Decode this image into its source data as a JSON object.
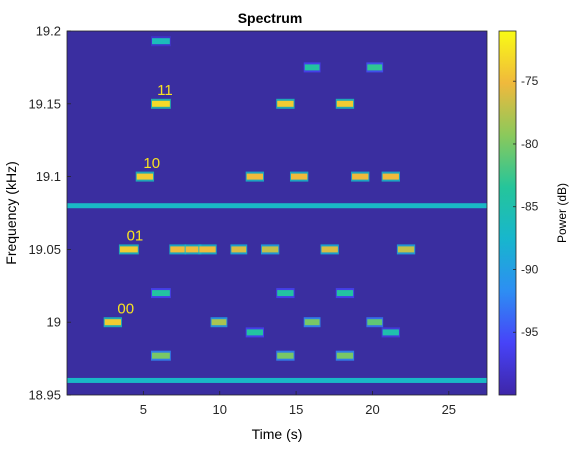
{
  "chart_data": {
    "type": "heatmap",
    "title": "Spectrum",
    "xlabel": "Time (s)",
    "ylabel": "Frequency (kHz)",
    "xlim": [
      0,
      27.5
    ],
    "ylim": [
      18.95,
      19.2
    ],
    "x_ticks": [
      5,
      10,
      15,
      20,
      25
    ],
    "y_ticks": [
      18.95,
      19,
      19.05,
      19.1,
      19.15,
      19.2
    ],
    "colorbar": {
      "label": "Power (dB)",
      "range": [
        -100,
        -71
      ],
      "ticks": [
        -95,
        -90,
        -85,
        -80,
        -75
      ],
      "colormap": [
        "#3e26a8",
        "#4743f8",
        "#2d8ef3",
        "#17b6cd",
        "#25c59a",
        "#8bc95b",
        "#f0b93c",
        "#f9fb15"
      ]
    },
    "background_color": "#3a2ea0",
    "continuous_lines": [
      {
        "freq": 19.08,
        "power": -87
      },
      {
        "freq": 18.96,
        "power": -87
      }
    ],
    "annotations": [
      {
        "text": "00",
        "x": 3.3,
        "y": 19.006,
        "color": "#f9e321"
      },
      {
        "text": "01",
        "x": 3.9,
        "y": 19.056,
        "color": "#f9e321"
      },
      {
        "text": "10",
        "x": 5.0,
        "y": 19.106,
        "color": "#f9e321"
      },
      {
        "text": "11",
        "x": 5.9,
        "y": 19.156,
        "color": "#f9e321"
      }
    ],
    "tones": [
      {
        "t0": 2.4,
        "t1": 3.6,
        "freq": 19.0,
        "power": -74
      },
      {
        "t0": 3.4,
        "t1": 4.7,
        "freq": 19.05,
        "power": -74
      },
      {
        "t0": 4.5,
        "t1": 5.7,
        "freq": 19.1,
        "power": -74
      },
      {
        "t0": 5.5,
        "t1": 6.8,
        "freq": 19.15,
        "power": -73
      },
      {
        "t0": 5.5,
        "t1": 6.8,
        "freq": 18.977,
        "power": -80
      },
      {
        "t0": 5.5,
        "t1": 6.8,
        "freq": 19.02,
        "power": -84
      },
      {
        "t0": 5.5,
        "t1": 6.8,
        "freq": 19.193,
        "power": -86
      },
      {
        "t0": 6.7,
        "t1": 7.8,
        "freq": 19.05,
        "power": -75
      },
      {
        "t0": 7.7,
        "t1": 8.8,
        "freq": 19.05,
        "power": -75
      },
      {
        "t0": 8.6,
        "t1": 9.8,
        "freq": 19.05,
        "power": -75
      },
      {
        "t0": 9.4,
        "t1": 10.5,
        "freq": 19.0,
        "power": -78
      },
      {
        "t0": 10.7,
        "t1": 11.8,
        "freq": 19.05,
        "power": -76
      },
      {
        "t0": 11.7,
        "t1": 12.9,
        "freq": 19.1,
        "power": -75
      },
      {
        "t0": 11.7,
        "t1": 12.9,
        "freq": 18.993,
        "power": -84
      },
      {
        "t0": 12.7,
        "t1": 13.9,
        "freq": 19.05,
        "power": -77
      },
      {
        "t0": 13.7,
        "t1": 14.9,
        "freq": 19.15,
        "power": -74
      },
      {
        "t0": 13.7,
        "t1": 14.9,
        "freq": 18.977,
        "power": -80
      },
      {
        "t0": 13.7,
        "t1": 14.9,
        "freq": 19.02,
        "power": -84
      },
      {
        "t0": 14.6,
        "t1": 15.8,
        "freq": 19.1,
        "power": -75
      },
      {
        "t0": 15.5,
        "t1": 16.6,
        "freq": 19.0,
        "power": -80
      },
      {
        "t0": 15.5,
        "t1": 16.6,
        "freq": 19.175,
        "power": -84
      },
      {
        "t0": 16.6,
        "t1": 17.8,
        "freq": 19.05,
        "power": -76
      },
      {
        "t0": 17.6,
        "t1": 18.8,
        "freq": 19.15,
        "power": -74
      },
      {
        "t0": 17.6,
        "t1": 18.8,
        "freq": 18.977,
        "power": -80
      },
      {
        "t0": 17.6,
        "t1": 18.8,
        "freq": 19.02,
        "power": -84
      },
      {
        "t0": 18.6,
        "t1": 19.8,
        "freq": 19.1,
        "power": -75
      },
      {
        "t0": 19.6,
        "t1": 20.7,
        "freq": 19.0,
        "power": -81
      },
      {
        "t0": 19.6,
        "t1": 20.7,
        "freq": 19.175,
        "power": -83
      },
      {
        "t0": 20.6,
        "t1": 21.8,
        "freq": 19.1,
        "power": -75
      },
      {
        "t0": 20.6,
        "t1": 21.8,
        "freq": 18.993,
        "power": -85
      },
      {
        "t0": 21.6,
        "t1": 22.8,
        "freq": 19.05,
        "power": -77
      }
    ]
  }
}
